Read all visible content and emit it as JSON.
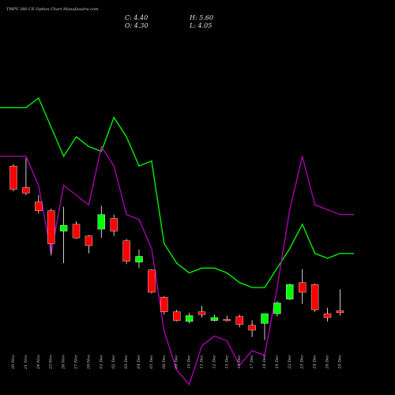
{
  "header": {
    "title": "TMPV 380 CE Option Chart Munafasutra.com",
    "close_label": "C: 4.40",
    "open_label": "O: 4.30",
    "high_label": "H: 5.60",
    "low_label": "L: 4.05"
  },
  "colors": {
    "background": "#000000",
    "up": "#00ff00",
    "down": "#ff0000",
    "line_upper": "#00ee00",
    "line_lower": "#aa00aa",
    "wick": "#ffffff"
  },
  "chart_data": {
    "type": "candlestick",
    "title": "TMPV 380 CE Option Chart Munafasutra.com",
    "categories": [
      "20 Nov",
      "21 Nov",
      "24 Nov",
      "25 Nov",
      "26 Nov",
      "27 Nov",
      "28 Nov",
      "01 Dec",
      "02 Dec",
      "03 Dec",
      "04 Dec",
      "05 Dec",
      "08 Dec",
      "09 Dec",
      "10 Dec",
      "11 Dec",
      "12 Dec",
      "15 Dec",
      "16 Dec",
      "17 Dec",
      "18 Dec",
      "19 Dec",
      "22 Dec",
      "23 Dec",
      "24 Dec",
      "26 Dec",
      "29 Dec"
    ],
    "candles": [
      {
        "o": 13.0,
        "h": 13.2,
        "l": 10.4,
        "c": 10.6
      },
      {
        "o": 10.8,
        "h": 13.8,
        "l": 10.0,
        "c": 10.2
      },
      {
        "o": 9.3,
        "h": 10.0,
        "l": 8.1,
        "c": 8.4
      },
      {
        "o": 8.4,
        "h": 8.6,
        "l": 3.8,
        "c": 5.0
      },
      {
        "o": 6.3,
        "h": 8.8,
        "l": 3.0,
        "c": 6.9
      },
      {
        "o": 7.0,
        "h": 7.3,
        "l": 5.5,
        "c": 5.6
      },
      {
        "o": 5.8,
        "h": 5.9,
        "l": 4.0,
        "c": 4.8
      },
      {
        "o": 6.5,
        "h": 8.9,
        "l": 5.6,
        "c": 8.0
      },
      {
        "o": 7.6,
        "h": 8.0,
        "l": 5.8,
        "c": 6.3
      },
      {
        "o": 5.3,
        "h": 5.5,
        "l": 2.9,
        "c": 3.2
      },
      {
        "o": 3.1,
        "h": 4.4,
        "l": 2.5,
        "c": 3.7
      },
      {
        "o": 2.3,
        "h": 2.4,
        "l": -0.1,
        "c": 0.0
      },
      {
        "o": -0.5,
        "h": -0.4,
        "l": -2.3,
        "c": -2.0
      },
      {
        "o": -2.0,
        "h": -1.8,
        "l": -3.0,
        "c": -2.9
      },
      {
        "o": -3.0,
        "h": -2.1,
        "l": -3.2,
        "c": -2.4
      },
      {
        "o": -2.0,
        "h": -1.4,
        "l": -2.6,
        "c": -2.3
      },
      {
        "o": -2.9,
        "h": -2.3,
        "l": -3.0,
        "c": -2.6
      },
      {
        "o": -2.8,
        "h": -2.4,
        "l": -3.0,
        "c": -2.9
      },
      {
        "o": -2.5,
        "h": -2.3,
        "l": -3.6,
        "c": -3.3
      },
      {
        "o": -3.4,
        "h": -2.9,
        "l": -4.6,
        "c": -3.9
      },
      {
        "o": -3.2,
        "h": -2.2,
        "l": -4.9,
        "c": -2.2
      },
      {
        "o": -2.2,
        "h": -0.9,
        "l": -2.5,
        "c": -1.1
      },
      {
        "o": -0.7,
        "h": 0.9,
        "l": -0.8,
        "c": 0.8
      },
      {
        "o": 1.0,
        "h": 2.4,
        "l": -1.2,
        "c": 0.0
      },
      {
        "o": 0.8,
        "h": 0.9,
        "l": -2.0,
        "c": -1.8
      },
      {
        "o": -2.2,
        "h": -1.6,
        "l": -3.0,
        "c": -2.6
      },
      {
        "o": -1.9,
        "h": 0.3,
        "l": -2.4,
        "c": -2.1
      }
    ],
    "series": [
      {
        "values": [
          19.0,
          19.0,
          20.0,
          17.0,
          14.0,
          16.0,
          15.0,
          14.5,
          18.0,
          16.0,
          13.0,
          13.5,
          5.0,
          3.0,
          2.0,
          2.5,
          2.5,
          2.0,
          1.0,
          0.5,
          0.5,
          2.5,
          4.5,
          7.0,
          4.0,
          3.5,
          4.0
        ]
      },
      {
        "values": [
          14.0,
          14.0,
          11.0,
          4.0,
          11.0,
          10.0,
          9.0,
          15.0,
          13.0,
          8.0,
          7.5,
          4.5,
          -4.0,
          -8.0,
          -9.5,
          -5.5,
          -4.5,
          -5.0,
          -7.5,
          -6.0,
          -6.5,
          0.5,
          8.5,
          14.0,
          9.0,
          8.5,
          8.0
        ]
      }
    ],
    "xlabel": "",
    "ylabel": "",
    "grid": false,
    "legend": "none"
  }
}
